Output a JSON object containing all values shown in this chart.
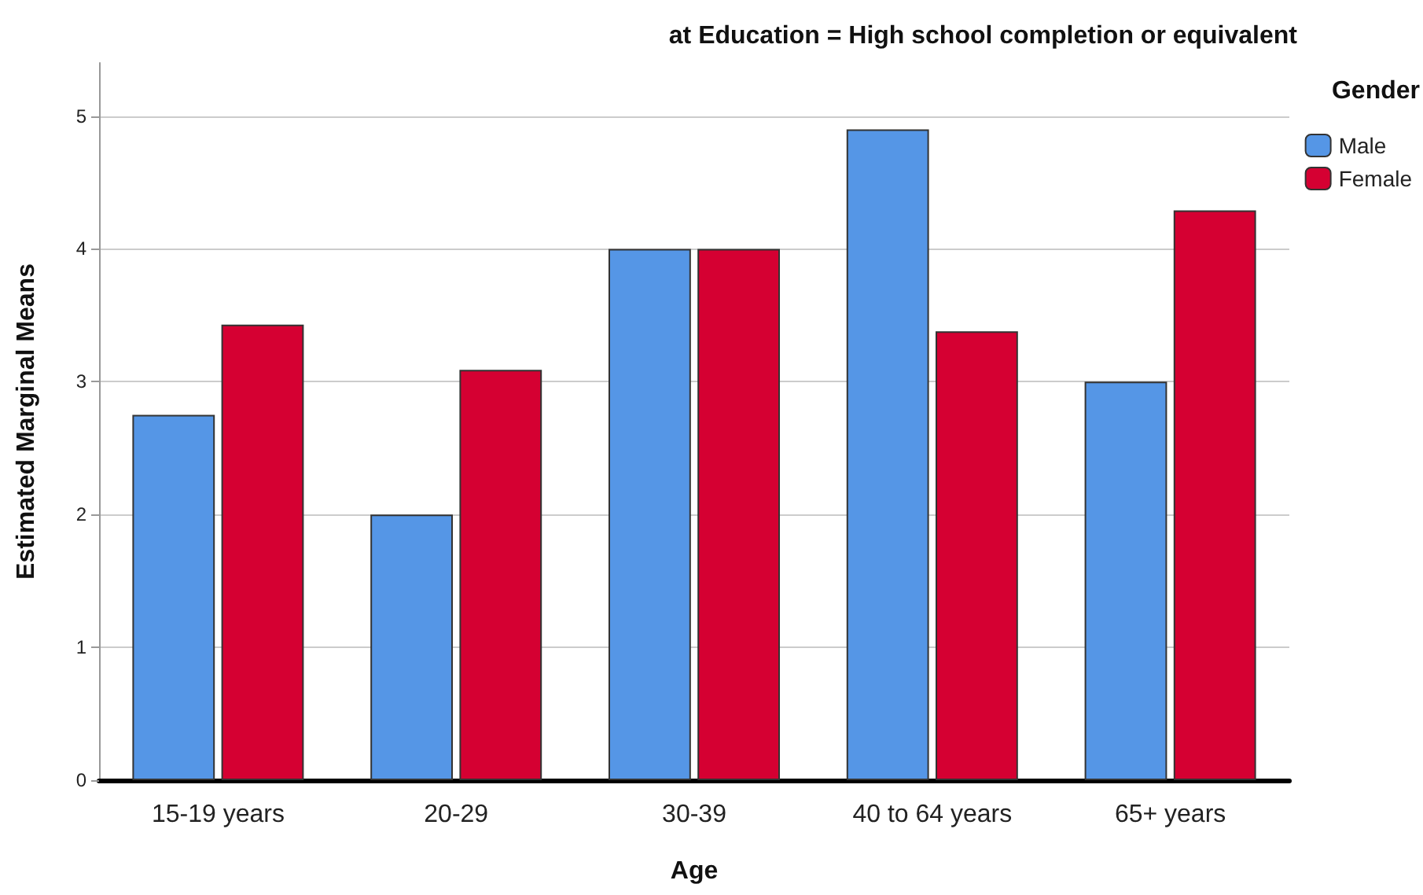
{
  "chart_data": {
    "type": "bar",
    "title": "at Education = High school completion or equivalent",
    "xlabel": "Age",
    "ylabel": "Estimated Marginal Means",
    "legend_title": "Gender",
    "categories": [
      "15-19 years",
      "20-29",
      "30-39",
      "40 to 64 years",
      "65+ years"
    ],
    "series": [
      {
        "name": "Male",
        "color": "#5596e6",
        "values": [
          2.75,
          2.0,
          4.0,
          4.9,
          3.0
        ]
      },
      {
        "name": "Female",
        "color": "#d50032",
        "values": [
          3.43,
          3.09,
          4.0,
          3.38,
          4.29
        ]
      }
    ],
    "ylim": [
      0,
      5.4
    ],
    "yticks": [
      0,
      1,
      2,
      3,
      4,
      5
    ],
    "grid": "y",
    "legend": "top right"
  }
}
